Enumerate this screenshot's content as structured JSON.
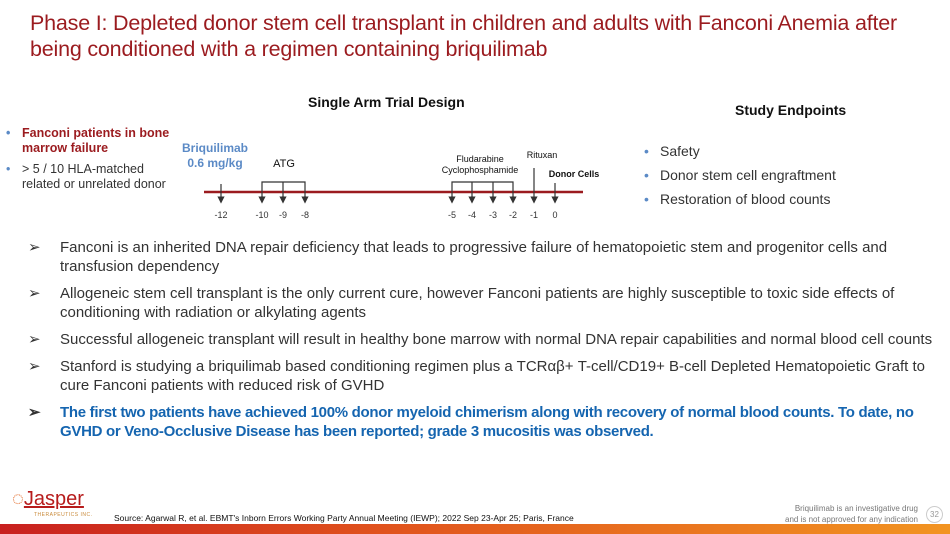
{
  "title": "Phase I: Depleted donor stem cell transplant in children and adults with Fanconi Anemia after being conditioned with a regimen containing briquilimab",
  "design": {
    "heading": "Single Arm Trial Design",
    "drug": "Briquilimab",
    "dose": "0.6 mg/kg",
    "atg": "ATG",
    "flu": "Fludarabine",
    "cy": "Cyclophosphamide",
    "rituxan": "Rituxan",
    "donor": "Donor Cells",
    "days": [
      "-12",
      "-10",
      "-9",
      "-8",
      "-5",
      "-4",
      "-3",
      "-2",
      "-1",
      "0"
    ]
  },
  "eligibility": [
    "Fanconi patients in bone marrow failure",
    "> 5 / 10 HLA-matched related or unrelated donor"
  ],
  "endpoints": {
    "heading": "Study Endpoints",
    "items": [
      "Safety",
      "Donor stem cell engraftment",
      "Restoration of blood counts"
    ]
  },
  "bullets": [
    "Fanconi is an inherited DNA repair deficiency that leads to progressive failure of hematopoietic stem and progenitor cells and transfusion dependency",
    "Allogeneic stem cell transplant is the only current cure, however Fanconi patients are highly susceptible to toxic side effects of conditioning with radiation or alkylating agents",
    "Successful allogeneic transplant will result in healthy bone marrow with normal DNA repair capabilities and normal blood cell counts",
    "Stanford is studying a briquilimab based conditioning regimen plus a TCRαβ+ T-cell/CD19+ B-cell Depleted Hematopoietic Graft to cure Fanconi patients with reduced risk of GVHD",
    "The first two patients have achieved 100% donor myeloid chimerism along with recovery of normal blood counts.  To date, no GVHD or Veno-Occlusive Disease has been reported; grade 3 mucositis was observed."
  ],
  "footer": {
    "logo": "Jasper",
    "logo_sub": "THERAPEUTICS INC.",
    "source": "Source: Agarwal R, et al. EBMT's Inborn Errors Working Party Annual Meeting (IEWP); 2022 Sep 23-Apr 25; Paris, France",
    "disclaimer1": "Briquilimab is an investigative drug",
    "disclaimer2": "and is not approved for any indication",
    "page": "32"
  }
}
